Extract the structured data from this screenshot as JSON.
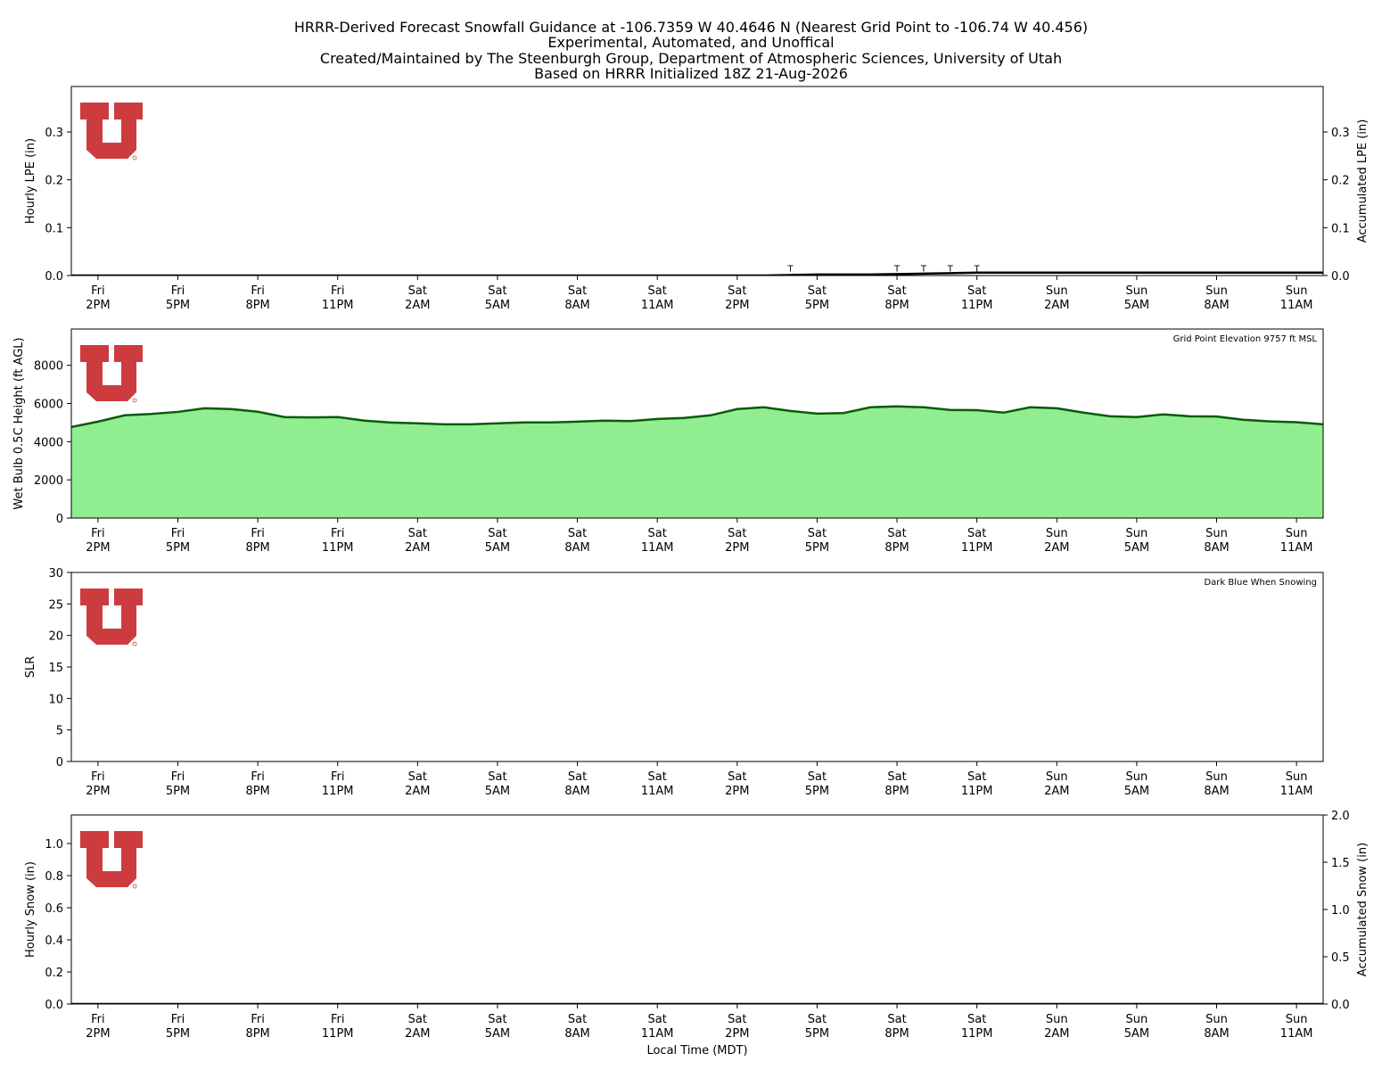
{
  "title": [
    "HRRR-Derived Forecast Snowfall Guidance at -106.7359 W 40.4646 N (Nearest Grid Point to -106.74 W 40.456)",
    "Experimental, Automated, and Unoffical",
    "Created/Maintained by The Steenburgh Group, Department of Atmospheric Sciences, University of Utah",
    "Based on HRRR Initialized 18Z 21-Aug-2026"
  ],
  "chart_data": [
    {
      "type": "combo",
      "ylabel": "Hourly LPE (in)",
      "y2label": "Accumulated LPE (in)",
      "categories": [
        null,
        "Fri\n2PM",
        null,
        null,
        "Fri\n5PM",
        null,
        null,
        "Fri\n8PM",
        null,
        null,
        "Fri\n11PM",
        null,
        null,
        "Sat\n2AM",
        null,
        null,
        "Sat\n5AM",
        null,
        null,
        "Sat\n8AM",
        null,
        null,
        "Sat\n11AM",
        null,
        null,
        "Sat\n2PM",
        null,
        null,
        "Sat\n5PM",
        null,
        null,
        "Sat\n8PM",
        null,
        null,
        "Sat\n11PM",
        null,
        null,
        "Sun\n2AM",
        null,
        null,
        "Sun\n5AM",
        null,
        null,
        "Sun\n8AM",
        null,
        null,
        "Sun\n11AM",
        null
      ],
      "ylim": [
        0,
        0.395
      ],
      "yticks": [
        {
          "value": 0,
          "label": "0.0"
        },
        0.1,
        0.2,
        0.3
      ],
      "y2lim": [
        0,
        0.395
      ],
      "y2ticks": [
        {
          "value": 0,
          "label": "0.0"
        },
        0.1,
        0.2,
        0.3
      ],
      "series": [
        {
          "kind": "bar",
          "color": "#1e90ff",
          "values": [
            0,
            0,
            0,
            0,
            0,
            0,
            0,
            0,
            0,
            0,
            0,
            0,
            0,
            0,
            0,
            0,
            0,
            0,
            0,
            0,
            0,
            0,
            0,
            0,
            0,
            0,
            0,
            0.001,
            0,
            0,
            0,
            0.001,
            0.001,
            0.001,
            0.001,
            0,
            0,
            0,
            0,
            0,
            0,
            0,
            0,
            0,
            0,
            0,
            0,
            0
          ],
          "value_labels": [
            null,
            null,
            null,
            null,
            null,
            null,
            null,
            null,
            null,
            null,
            null,
            null,
            null,
            null,
            null,
            null,
            null,
            null,
            null,
            null,
            null,
            null,
            null,
            null,
            null,
            null,
            null,
            "T",
            null,
            null,
            null,
            "T",
            "T",
            "T",
            "T",
            null,
            null,
            null,
            null,
            null,
            null,
            null,
            null,
            null,
            null,
            null,
            null,
            null
          ]
        },
        {
          "kind": "line",
          "color": "#000000",
          "axis": "y2",
          "values": [
            0,
            0,
            0,
            0,
            0,
            0,
            0,
            0,
            0,
            0,
            0,
            0,
            0,
            0,
            0,
            0,
            0,
            0,
            0,
            0,
            0,
            0,
            0,
            0,
            0,
            0,
            0,
            0.001,
            0.002,
            0.002,
            0.002,
            0.003,
            0.004,
            0.005,
            0.006,
            0.006,
            0.006,
            0.006,
            0.006,
            0.006,
            0.006,
            0.006,
            0.006,
            0.006,
            0.006,
            0.006,
            0.006,
            0.006
          ]
        }
      ]
    },
    {
      "type": "area",
      "ylabel": "Wet Bulb 0.5C Height (ft AGL)",
      "annotation": "Grid Point Elevation 9757 ft MSL",
      "categories": [
        null,
        "Fri\n2PM",
        null,
        null,
        "Fri\n5PM",
        null,
        null,
        "Fri\n8PM",
        null,
        null,
        "Fri\n11PM",
        null,
        null,
        "Sat\n2AM",
        null,
        null,
        "Sat\n5AM",
        null,
        null,
        "Sat\n8AM",
        null,
        null,
        "Sat\n11AM",
        null,
        null,
        "Sat\n2PM",
        null,
        null,
        "Sat\n5PM",
        null,
        null,
        "Sat\n8PM",
        null,
        null,
        "Sat\n11PM",
        null,
        null,
        "Sun\n2AM",
        null,
        null,
        "Sun\n5AM",
        null,
        null,
        "Sun\n8AM",
        null,
        null,
        "Sun\n11AM",
        null
      ],
      "ylim": [
        0,
        9900
      ],
      "yticks": [
        0,
        2000,
        4000,
        6000,
        8000
      ],
      "color": "#90ee90",
      "line_color": "#0b5a0b",
      "values": [
        4770,
        5050,
        5380,
        5450,
        5560,
        5750,
        5710,
        5570,
        5290,
        5270,
        5290,
        5100,
        5000,
        4960,
        4910,
        4910,
        4960,
        5010,
        5010,
        5050,
        5100,
        5080,
        5190,
        5240,
        5380,
        5710,
        5800,
        5610,
        5470,
        5500,
        5800,
        5850,
        5800,
        5660,
        5650,
        5520,
        5800,
        5750,
        5520,
        5330,
        5290,
        5430,
        5330,
        5320,
        5150,
        5060,
        5020,
        4910
      ]
    },
    {
      "type": "bar",
      "ylabel": "SLR",
      "annotation": "Dark Blue When Snowing",
      "categories": [
        null,
        "Fri\n2PM",
        null,
        null,
        "Fri\n5PM",
        null,
        null,
        "Fri\n8PM",
        null,
        null,
        "Fri\n11PM",
        null,
        null,
        "Sat\n2AM",
        null,
        null,
        "Sat\n5AM",
        null,
        null,
        "Sat\n8AM",
        null,
        null,
        "Sat\n11AM",
        null,
        null,
        "Sat\n2PM",
        null,
        null,
        "Sat\n5PM",
        null,
        null,
        "Sat\n8PM",
        null,
        null,
        "Sat\n11PM",
        null,
        null,
        "Sun\n2AM",
        null,
        null,
        "Sun\n5AM",
        null,
        null,
        "Sun\n8AM",
        null,
        null,
        "Sun\n11AM",
        null
      ],
      "ylim": [
        0,
        30
      ],
      "yticks": [
        0,
        5,
        10,
        15,
        20,
        25,
        30
      ],
      "color": "#00008b",
      "values": [
        null,
        null,
        null,
        null,
        null,
        null,
        null,
        null,
        null,
        null,
        null,
        null,
        null,
        null,
        null,
        null,
        null,
        null,
        null,
        null,
        null,
        null,
        null,
        null,
        null,
        null,
        null,
        null,
        null,
        null,
        null,
        null,
        null,
        null,
        null,
        null,
        null,
        null,
        null,
        null,
        null,
        null,
        null,
        null,
        null,
        null,
        null,
        null
      ]
    },
    {
      "type": "combo",
      "ylabel": "Hourly Snow (in)",
      "y2label": "Accumulated Snow (in)",
      "xlabel": "Local Time (MDT)",
      "categories": [
        null,
        "Fri\n2PM",
        null,
        null,
        "Fri\n5PM",
        null,
        null,
        "Fri\n8PM",
        null,
        null,
        "Fri\n11PM",
        null,
        null,
        "Sat\n2AM",
        null,
        null,
        "Sat\n5AM",
        null,
        null,
        "Sat\n8AM",
        null,
        null,
        "Sat\n11AM",
        null,
        null,
        "Sat\n2PM",
        null,
        null,
        "Sat\n5PM",
        null,
        null,
        "Sat\n8PM",
        null,
        null,
        "Sat\n11PM",
        null,
        null,
        "Sun\n2AM",
        null,
        null,
        "Sun\n5AM",
        null,
        null,
        "Sun\n8AM",
        null,
        null,
        "Sun\n11AM",
        null
      ],
      "ylim": [
        0,
        1.178
      ],
      "yticks": [
        {
          "value": 0,
          "label": "0.0"
        },
        0.2,
        0.4,
        0.6,
        0.8,
        {
          "value": 1,
          "label": "1.0"
        }
      ],
      "y2lim": [
        0,
        2
      ],
      "y2ticks": [
        {
          "value": 0,
          "label": "0.0"
        },
        0.5,
        {
          "value": 1,
          "label": "1.0"
        },
        1.5,
        {
          "value": 2,
          "label": "2.0"
        }
      ],
      "series": [
        {
          "kind": "bar",
          "color": "#00008b",
          "values": [
            0,
            0,
            0,
            0,
            0,
            0,
            0,
            0,
            0,
            0,
            0,
            0,
            0,
            0,
            0,
            0,
            0,
            0,
            0,
            0,
            0,
            0,
            0,
            0,
            0,
            0,
            0,
            0,
            0,
            0,
            0,
            0,
            0,
            0,
            0,
            0,
            0,
            0,
            0,
            0,
            0,
            0,
            0,
            0,
            0,
            0,
            0,
            0
          ]
        },
        {
          "kind": "line",
          "color": "#000000",
          "axis": "y2",
          "values": [
            0,
            0,
            0,
            0,
            0,
            0,
            0,
            0,
            0,
            0,
            0,
            0,
            0,
            0,
            0,
            0,
            0,
            0,
            0,
            0,
            0,
            0,
            0,
            0,
            0,
            0,
            0,
            0,
            0,
            0,
            0,
            0,
            0,
            0,
            0,
            0,
            0,
            0,
            0,
            0,
            0,
            0,
            0,
            0,
            0,
            0,
            0,
            0
          ]
        }
      ]
    }
  ]
}
